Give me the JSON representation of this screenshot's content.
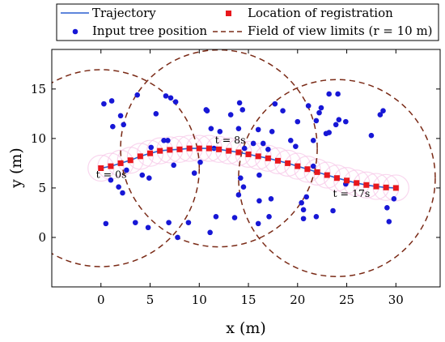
{
  "chart_data": {
    "type": "scatter",
    "xlabel": "x (m)",
    "ylabel": "y (m)",
    "xlim": [
      -5,
      34.5
    ],
    "ylim": [
      -5,
      19
    ],
    "xticks": [
      0,
      5,
      10,
      15,
      20,
      25,
      30
    ],
    "yticks": [
      0,
      5,
      10,
      15
    ],
    "legend": [
      {
        "key": "trajectory",
        "label": "Trajectory"
      },
      {
        "key": "registration",
        "label": "Location of registration"
      },
      {
        "key": "trees",
        "label": "Input tree position"
      },
      {
        "key": "fov",
        "label": "Field of view limits (r = 10 m)"
      }
    ],
    "colors": {
      "trajectory": "#2a5fd0",
      "registration": "#e8171c",
      "trees": "#1717d6",
      "fov": "#7a2a16",
      "halo": "#f7c8e8"
    },
    "trajectory": [
      [
        0,
        7
      ],
      [
        1,
        7.2
      ],
      [
        2,
        7.5
      ],
      [
        3,
        7.8
      ],
      [
        4,
        8.2
      ],
      [
        5,
        8.5
      ],
      [
        6,
        8.75
      ],
      [
        7,
        8.85
      ],
      [
        8,
        8.9
      ],
      [
        9,
        9.0
      ],
      [
        10,
        9.0
      ],
      [
        11,
        9.0
      ],
      [
        12,
        8.9
      ],
      [
        13,
        8.75
      ],
      [
        14,
        8.6
      ],
      [
        15,
        8.4
      ],
      [
        16,
        8.2
      ],
      [
        17,
        8.0
      ],
      [
        18,
        7.75
      ],
      [
        19,
        7.5
      ],
      [
        20,
        7.2
      ],
      [
        21,
        6.9
      ],
      [
        22,
        6.6
      ],
      [
        23,
        6.3
      ],
      [
        24,
        6.0
      ],
      [
        25,
        5.75
      ],
      [
        26,
        5.5
      ],
      [
        27,
        5.3
      ],
      [
        28,
        5.15
      ],
      [
        29,
        5.05
      ],
      [
        30,
        5.0
      ]
    ],
    "registrations": [
      [
        0,
        7
      ],
      [
        1,
        7.2
      ],
      [
        2,
        7.5
      ],
      [
        3,
        7.8
      ],
      [
        4,
        8.2
      ],
      [
        5,
        8.5
      ],
      [
        6,
        8.75
      ],
      [
        7,
        8.85
      ],
      [
        8,
        8.9
      ],
      [
        9,
        9.0
      ],
      [
        10,
        9.0
      ],
      [
        11,
        9.0
      ],
      [
        12,
        8.9
      ],
      [
        13,
        8.75
      ],
      [
        14,
        8.6
      ],
      [
        15,
        8.4
      ],
      [
        16,
        8.2
      ],
      [
        17,
        8.0
      ],
      [
        18,
        7.75
      ],
      [
        19,
        7.5
      ],
      [
        20,
        7.2
      ],
      [
        21,
        6.9
      ],
      [
        22,
        6.6
      ],
      [
        23,
        6.3
      ],
      [
        24,
        6.0
      ],
      [
        25,
        5.75
      ],
      [
        26,
        5.5
      ],
      [
        27,
        5.3
      ],
      [
        28,
        5.15
      ],
      [
        29,
        5.05
      ],
      [
        30,
        5.0
      ]
    ],
    "trees": [
      [
        0.3,
        13.5
      ],
      [
        1.1,
        13.8
      ],
      [
        1.2,
        11.2
      ],
      [
        2.0,
        12.3
      ],
      [
        2.3,
        11.4
      ],
      [
        3.7,
        14.4
      ],
      [
        2.2,
        4.5
      ],
      [
        1.0,
        5.8
      ],
      [
        1.8,
        5.1
      ],
      [
        2.6,
        6.8
      ],
      [
        4.2,
        6.3
      ],
      [
        4.9,
        6.0
      ],
      [
        5.1,
        9.1
      ],
      [
        5.6,
        12.5
      ],
      [
        6.4,
        9.8
      ],
      [
        6.8,
        9.8
      ],
      [
        6.6,
        14.3
      ],
      [
        7.1,
        14.1
      ],
      [
        7.6,
        13.7
      ],
      [
        6.9,
        1.5
      ],
      [
        7.4,
        7.3
      ],
      [
        8.9,
        1.5
      ],
      [
        7.8,
        0.0
      ],
      [
        4.8,
        1.0
      ],
      [
        3.5,
        1.5
      ],
      [
        0.5,
        1.4
      ],
      [
        9.5,
        6.5
      ],
      [
        10.1,
        7.6
      ],
      [
        10.7,
        12.9
      ],
      [
        10.8,
        12.8
      ],
      [
        11.5,
        9.0
      ],
      [
        11.2,
        11.0
      ],
      [
        12.1,
        10.7
      ],
      [
        11.7,
        2.1
      ],
      [
        11.1,
        0.5
      ],
      [
        13.2,
        12.4
      ],
      [
        13.6,
        2.0
      ],
      [
        14.0,
        11.0
      ],
      [
        14.0,
        4.3
      ],
      [
        14.2,
        6.0
      ],
      [
        14.5,
        5.1
      ],
      [
        14.6,
        9.0
      ],
      [
        14.4,
        12.9
      ],
      [
        14.1,
        13.6
      ],
      [
        15.5,
        9.5
      ],
      [
        16.0,
        10.9
      ],
      [
        16.1,
        6.3
      ],
      [
        16.1,
        3.7
      ],
      [
        16.0,
        1.4
      ],
      [
        16.5,
        9.5
      ],
      [
        17.0,
        8.9
      ],
      [
        17.4,
        10.7
      ],
      [
        17.3,
        3.9
      ],
      [
        17.1,
        2.1
      ],
      [
        17.7,
        13.5
      ],
      [
        18.5,
        12.8
      ],
      [
        19.3,
        9.8
      ],
      [
        19.8,
        9.2
      ],
      [
        20.0,
        11.7
      ],
      [
        20.4,
        3.5
      ],
      [
        20.6,
        2.8
      ],
      [
        20.9,
        4.1
      ],
      [
        20.6,
        1.9
      ],
      [
        21.1,
        13.3
      ],
      [
        21.9,
        2.1
      ],
      [
        21.6,
        7.2
      ],
      [
        21.6,
        9.8
      ],
      [
        21.9,
        11.8
      ],
      [
        22.2,
        12.6
      ],
      [
        22.4,
        13.1
      ],
      [
        22.9,
        10.5
      ],
      [
        23.2,
        10.6
      ],
      [
        23.2,
        14.5
      ],
      [
        23.6,
        2.7
      ],
      [
        23.9,
        11.4
      ],
      [
        24.2,
        11.9
      ],
      [
        24.1,
        14.5
      ],
      [
        24.9,
        11.7
      ],
      [
        24.9,
        5.4
      ],
      [
        27.5,
        10.3
      ],
      [
        28.4,
        12.4
      ],
      [
        28.7,
        12.8
      ],
      [
        29.1,
        3.0
      ],
      [
        29.3,
        1.6
      ],
      [
        29.8,
        3.9
      ]
    ],
    "fov_circles": [
      {
        "cx": 0,
        "cy": 7,
        "r": 10
      },
      {
        "cx": 12,
        "cy": 9,
        "r": 10
      },
      {
        "cx": 24,
        "cy": 6,
        "r": 10
      }
    ],
    "annotations": [
      {
        "text": "t = 0s",
        "x": -0.5,
        "y": 6.0
      },
      {
        "text": "t = 8s",
        "x": 11.6,
        "y": 9.5
      },
      {
        "text": "t = 17s",
        "x": 23.6,
        "y": 4.1
      }
    ]
  }
}
